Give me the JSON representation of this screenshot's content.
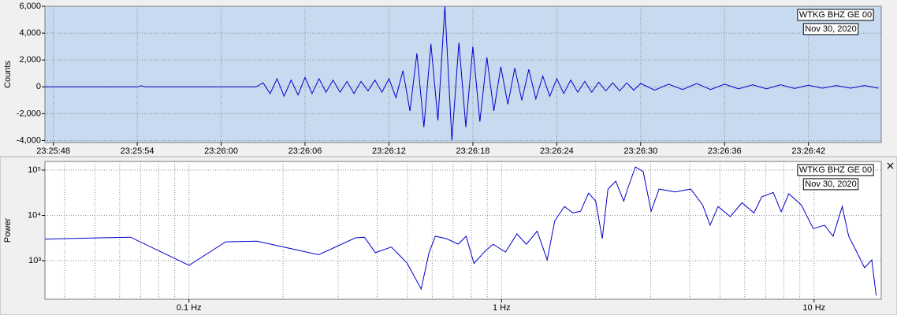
{
  "chart_data": [
    {
      "type": "line",
      "y_label": "Counts",
      "station": "WTKG BHZ GE 00",
      "date": "Nov 30, 2020",
      "color": "#0000cc",
      "background": "#c8daf0",
      "grid": true,
      "xlim": [
        "23:25:47.4",
        "23:26:47.2"
      ],
      "xticks": [
        "23:25:48",
        "23:25:54",
        "23:26:00",
        "23:26:06",
        "23:26:12",
        "23:26:18",
        "23:26:24",
        "23:26:30",
        "23:26:36",
        "23:26:42"
      ],
      "ylim": [
        -4150,
        6000
      ],
      "yticks": [
        {
          "value": 6000,
          "label": "6,000"
        },
        {
          "value": 4000,
          "label": "4,000"
        },
        {
          "value": 2000,
          "label": "2,000"
        },
        0,
        {
          "value": -2000,
          "label": "-2,000"
        },
        {
          "value": -4000,
          "label": "-4,000"
        }
      ],
      "x": [
        "23:25:47.4",
        "23:25:54.0",
        "23:25:54.3",
        "23:25:54.6",
        "23:26:00.0",
        "23:26:02.5",
        "23:26:03.0",
        "23:26:03.5",
        "23:26:04.0",
        "23:26:04.5",
        "23:26:05.0",
        "23:26:05.5",
        "23:26:06.0",
        "23:26:06.5",
        "23:26:07.0",
        "23:26:07.5",
        "23:26:08.0",
        "23:26:08.5",
        "23:26:09.0",
        "23:26:09.5",
        "23:26:10.0",
        "23:26:10.5",
        "23:26:11.0",
        "23:26:11.5",
        "23:26:12.0",
        "23:26:12.5",
        "23:26:13.0",
        "23:26:13.5",
        "23:26:14.0",
        "23:26:14.5",
        "23:26:15.0",
        "23:26:15.5",
        "23:26:16.0",
        "23:26:16.5",
        "23:26:17.0",
        "23:26:17.5",
        "23:26:18.0",
        "23:26:18.5",
        "23:26:19.0",
        "23:26:19.5",
        "23:26:20.0",
        "23:26:20.5",
        "23:26:21.0",
        "23:26:21.5",
        "23:26:22.0",
        "23:26:22.5",
        "23:26:23.0",
        "23:26:23.5",
        "23:26:24.0",
        "23:26:24.5",
        "23:26:25.0",
        "23:26:25.5",
        "23:26:26.0",
        "23:26:26.5",
        "23:26:27.0",
        "23:26:27.5",
        "23:26:28.0",
        "23:26:28.5",
        "23:26:29.0",
        "23:26:29.5",
        "23:26:30.0",
        "23:26:31.0",
        "23:26:32.0",
        "23:26:33.0",
        "23:26:34.0",
        "23:26:35.0",
        "23:26:36.0",
        "23:26:37.0",
        "23:26:38.0",
        "23:26:39.0",
        "23:26:40.0",
        "23:26:41.0",
        "23:26:42.0",
        "23:26:43.0",
        "23:26:44.0",
        "23:26:45.0",
        "23:26:46.0",
        "23:26:47.0"
      ],
      "values": [
        0,
        0,
        80,
        0,
        0,
        0,
        300,
        -500,
        600,
        -700,
        500,
        -600,
        700,
        -500,
        600,
        -400,
        500,
        -400,
        400,
        -500,
        400,
        -300,
        500,
        -400,
        600,
        -800,
        1200,
        -1800,
        2500,
        -3000,
        3200,
        -2500,
        6000,
        -4000,
        3300,
        -3000,
        3000,
        -2600,
        2200,
        -1800,
        1500,
        -1300,
        1400,
        -1000,
        1300,
        -900,
        800,
        -700,
        600,
        -500,
        500,
        -400,
        400,
        -400,
        350,
        -300,
        300,
        -300,
        300,
        -250,
        250,
        -250,
        200,
        -200,
        250,
        -200,
        200,
        -150,
        150,
        -150,
        150,
        -120,
        120,
        -100,
        100,
        -100,
        100,
        -100
      ]
    },
    {
      "type": "line",
      "y_label": "Power",
      "station": "WTKG BHZ GE 00",
      "date": "Nov 30, 2020",
      "color": "#0000cc",
      "background": "#ffffff",
      "grid": true,
      "x_log": true,
      "y_log": true,
      "xlim": [
        0.0346,
        16.4
      ],
      "xticks": [
        {
          "value": 0.1,
          "label": "0.1 Hz"
        },
        {
          "value": 1,
          "label": "1 Hz"
        },
        {
          "value": 10,
          "label": "10 Hz"
        }
      ],
      "xminor_ticks": [
        0.04,
        0.05,
        0.06,
        0.07,
        0.08,
        0.09,
        0.2,
        0.3,
        0.4,
        0.5,
        0.6,
        0.7,
        0.8,
        0.9,
        2,
        3,
        4,
        5,
        6,
        7,
        8,
        9
      ],
      "ylim": [
        141,
        155000
      ],
      "yticks": [
        {
          "value": 100000,
          "label": "10⁵"
        },
        {
          "value": 10000,
          "label": "10⁴"
        },
        {
          "value": 1000,
          "label": "10³"
        }
      ],
      "x": [
        0.0346,
        0.065,
        0.1,
        0.131,
        0.165,
        0.26,
        0.341,
        0.364,
        0.395,
        0.444,
        0.498,
        0.553,
        0.586,
        0.614,
        0.666,
        0.727,
        0.77,
        0.816,
        0.89,
        0.94,
        1.03,
        1.12,
        1.2,
        1.3,
        1.4,
        1.48,
        1.59,
        1.69,
        1.79,
        1.9,
        2.0,
        2.1,
        2.19,
        2.32,
        2.46,
        2.53,
        2.68,
        2.84,
        3.01,
        3.19,
        3.59,
        4.03,
        4.4,
        4.65,
        4.93,
        5.39,
        5.88,
        6.42,
        6.8,
        7.4,
        7.85,
        8.3,
        9.1,
        9.94,
        10.8,
        11.5,
        12.3,
        12.9,
        13.7,
        14.5,
        15.3,
        15.8
      ],
      "values": [
        3000,
        3300,
        790,
        2610,
        2700,
        1350,
        3200,
        3300,
        1500,
        2000,
        900,
        237,
        1500,
        3460,
        3070,
        2320,
        3460,
        870,
        1680,
        2300,
        1550,
        3900,
        2300,
        4500,
        1040,
        7600,
        15700,
        11300,
        12300,
        31000,
        20600,
        3060,
        38000,
        56900,
        20600,
        38000,
        117000,
        92000,
        12300,
        38000,
        33000,
        38000,
        17000,
        6100,
        15700,
        9400,
        19000,
        11300,
        25600,
        32000,
        12000,
        30000,
        17000,
        5100,
        6100,
        3460,
        15700,
        3460,
        1550,
        700,
        1040,
        170
      ]
    }
  ]
}
